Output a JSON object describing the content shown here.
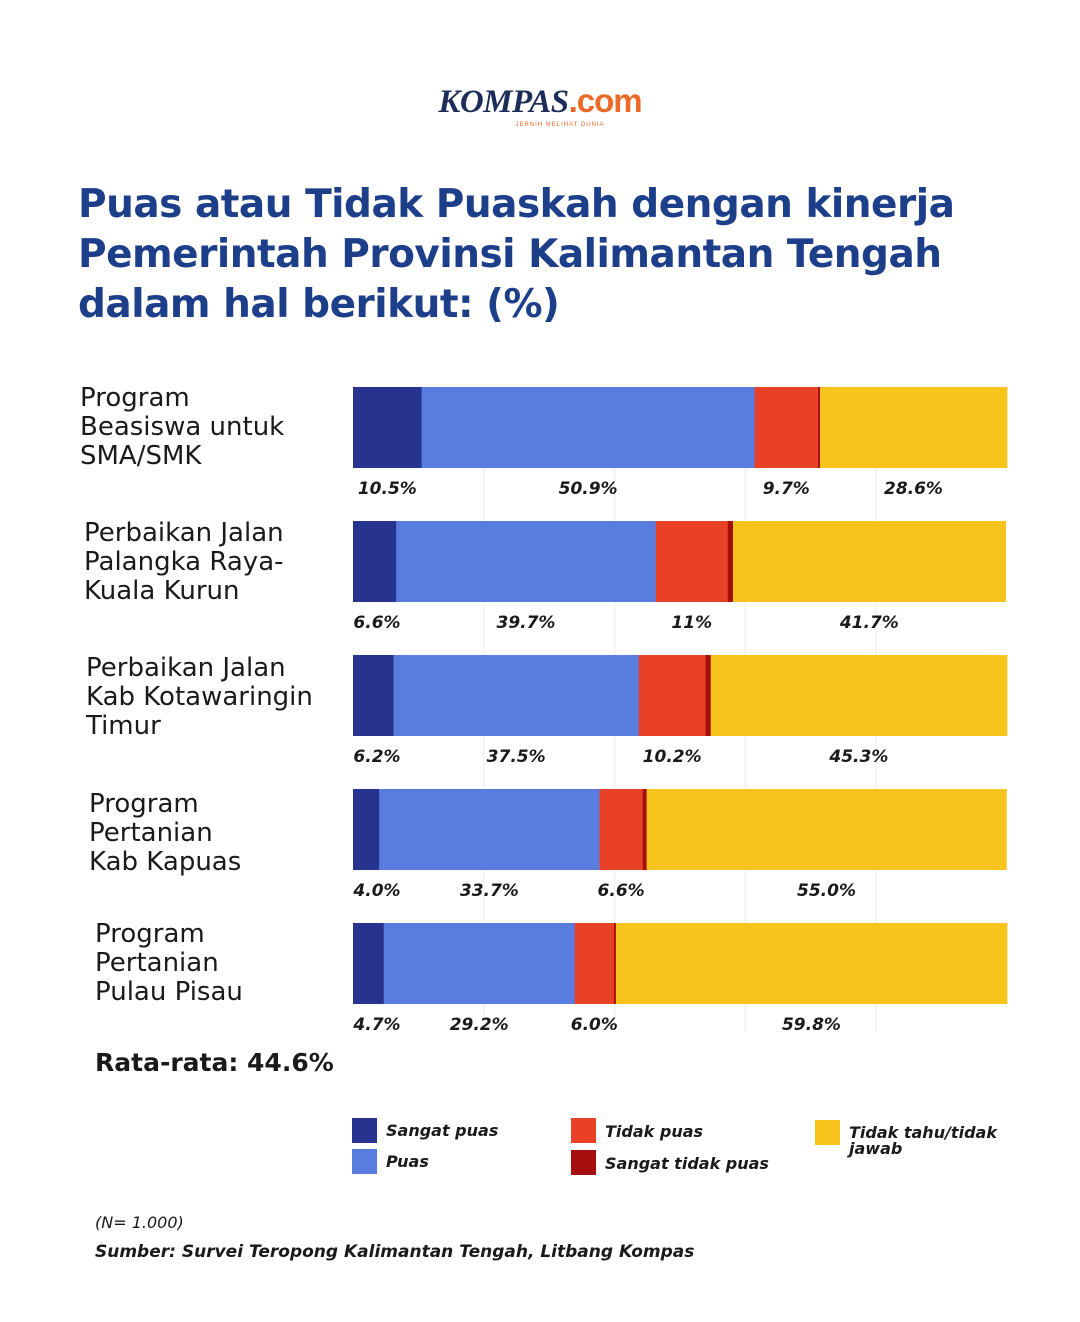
{
  "brand": {
    "logo_main": "KOMPAS",
    "logo_suffix": ".com",
    "tagline": "JERNIH MELIHAT DUNIA"
  },
  "colors": {
    "sangat_puas": "#26338f",
    "puas": "#587ddf",
    "tidak_puas": "#e84127",
    "sangat_tidak_puas": "#a60f0f",
    "tidak_tahu": "#f6c41c",
    "title": "#1d3f8a"
  },
  "chart_data": {
    "type": "bar",
    "orientation": "horizontal-stacked-100",
    "title": "Puas atau Tidak Puaskah dengan kinerja Pemerintah Provinsi Kalimantan Tengah dalam hal berikut: (%)",
    "title_lines": [
      "Puas atau Tidak Puaskah dengan kinerja",
      "Pemerintah Provinsi Kalimantan Tengah",
      "dalam hal berikut: (%)"
    ],
    "categories": [
      "Program Beasiswa untuk SMA/SMK",
      "Perbaikan Jalan Palangka Raya-Kuala Kurun",
      "Perbaikan Jalan Kab Kotawaringin Timur",
      "Program Pertanian Kab Kapuas",
      "Program Pertanian Pulau Pisau"
    ],
    "category_label_lines": [
      [
        "Program",
        "Beasiswa untuk",
        "SMA/SMK"
      ],
      [
        "Perbaikan Jalan",
        "Palangka Raya-",
        "Kuala Kurun"
      ],
      [
        "Perbaikan Jalan",
        "Kab Kotawaringin",
        "Timur"
      ],
      [
        "Program",
        "Pertanian",
        "Kab Kapuas"
      ],
      [
        "Program",
        "Pertanian",
        "Pulau Pisau"
      ]
    ],
    "series": [
      {
        "name": "Sangat puas",
        "values": [
          10.5,
          6.6,
          6.2,
          4.0,
          4.7
        ]
      },
      {
        "name": "Puas",
        "values": [
          50.9,
          39.7,
          37.5,
          33.7,
          29.2
        ]
      },
      {
        "name": "Tidak puas",
        "values": [
          9.7,
          11,
          10.2,
          6.6,
          6.0
        ]
      },
      {
        "name": "Sangat tidak puas",
        "values": [
          0.3,
          0.8,
          0.8,
          0.6,
          0.3
        ]
      },
      {
        "name": "Tidak tahu/tidak jawab",
        "values": [
          28.6,
          41.7,
          45.3,
          55.0,
          59.8
        ]
      }
    ],
    "data_labels": [
      [
        "10.5%",
        "50.9%",
        "9.7%",
        "28.6%"
      ],
      [
        "6.6%",
        "39.7%",
        "11%",
        "41.7%"
      ],
      [
        "6.2%",
        "37.5%",
        "10.2%",
        "45.3%"
      ],
      [
        "4.0%",
        "33.7%",
        "6.6%",
        "55.0%"
      ],
      [
        "4.7%",
        "29.2%",
        "6.0%",
        "59.8%"
      ]
    ],
    "data_label_series": [
      0,
      1,
      2,
      4
    ],
    "xlim": [
      0,
      100
    ],
    "grid": true,
    "legend_position": "bottom"
  },
  "legend": {
    "sangat_puas": "Sangat puas",
    "puas": "Puas",
    "tidak_puas": "Tidak puas",
    "sangat_tidak_puas": "Sangat tidak puas",
    "tidak_tahu_line1": "Tidak tahu/tidak",
    "tidak_tahu_line2": "jawab"
  },
  "average": "Rata-rata: 44.6%",
  "note": "(N= 1.000)",
  "source": "Sumber: Survei Teropong Kalimantan Tengah, Litbang Kompas"
}
